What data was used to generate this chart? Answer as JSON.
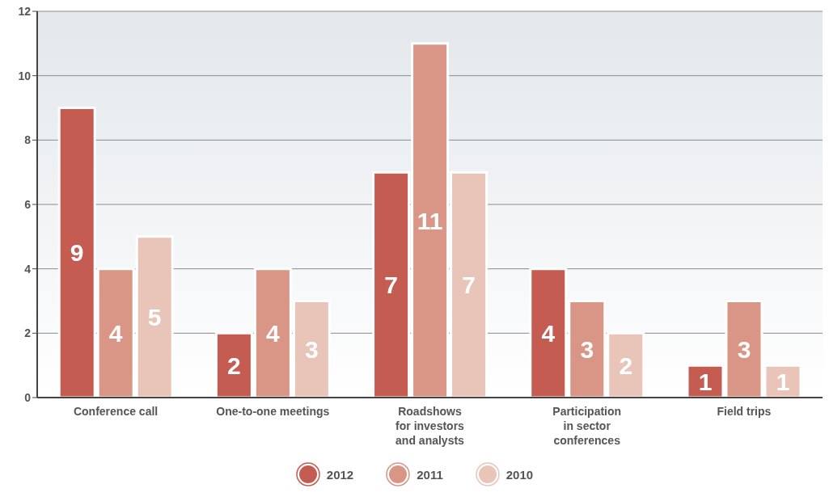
{
  "chart_data": {
    "type": "bar",
    "categories": [
      "Conference call",
      "One-to-one meetings",
      "Roadshows\nfor investors\nand analysts",
      "Participation\nin sector\nconferences",
      "Field trips"
    ],
    "series": [
      {
        "name": "2012",
        "color": "#c45c52",
        "values": [
          9,
          2,
          7,
          4,
          1
        ]
      },
      {
        "name": "2011",
        "color": "#d99585",
        "values": [
          4,
          4,
          11,
          3,
          3
        ]
      },
      {
        "name": "2010",
        "color": "#e9c4b9",
        "values": [
          5,
          3,
          7,
          2,
          1
        ]
      }
    ],
    "ylim": [
      0,
      12
    ],
    "yticks": [
      0,
      2,
      4,
      6,
      8,
      10,
      12
    ],
    "grid": "y",
    "legend": "bottom",
    "data_labels": true
  }
}
